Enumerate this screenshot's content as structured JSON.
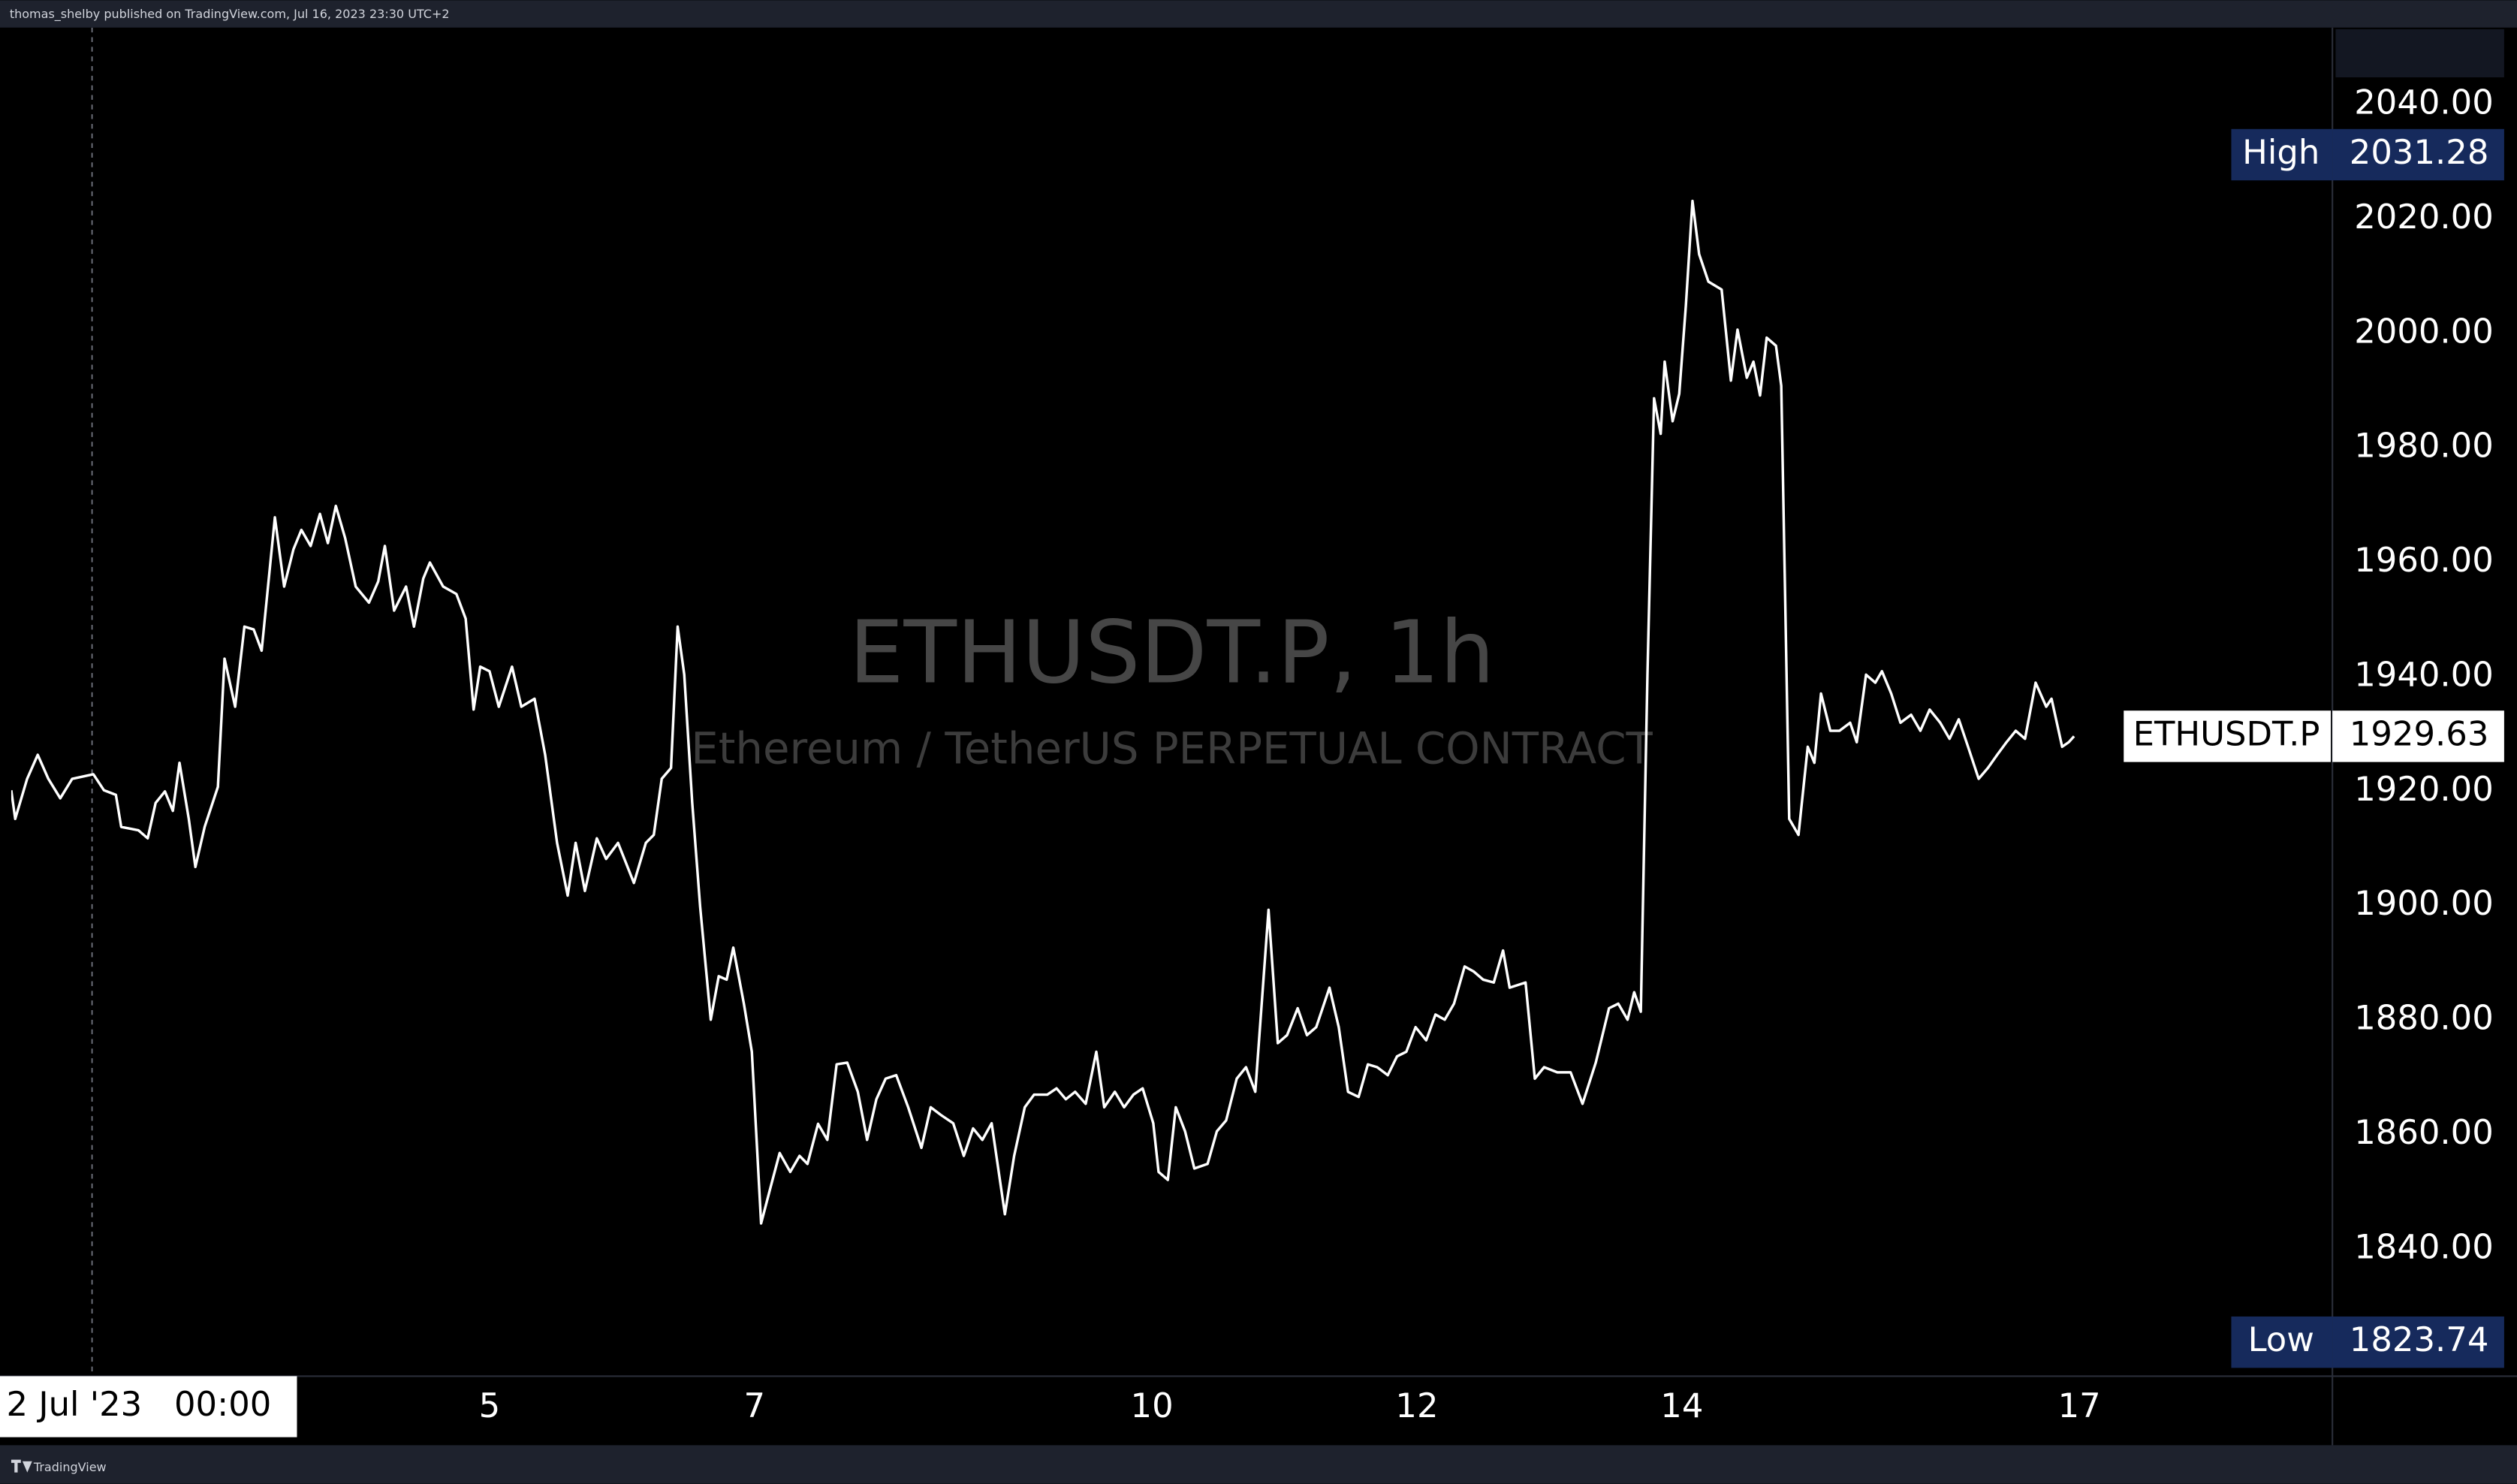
{
  "header": "thomas_shelby published on TradingView.com, Jul 16, 2023 23:30 UTC+2",
  "footer": "TradingView",
  "chart_data": {
    "type": "line",
    "title": "ETHUSDT.P, 1h",
    "subtitle": "Ethereum / TetherUS PERPETUAL CONTRACT",
    "x": [
      1.39,
      1.42,
      1.51,
      1.59,
      1.67,
      1.76,
      1.85,
      2.01,
      2.09,
      2.18,
      2.22,
      2.35,
      2.42,
      2.48,
      2.55,
      2.61,
      2.66,
      2.73,
      2.78,
      2.85,
      2.95,
      3.0,
      3.08,
      3.15,
      3.22,
      3.28,
      3.38,
      3.45,
      3.52,
      3.58,
      3.65,
      3.72,
      3.78,
      3.84,
      3.91,
      3.99,
      4.09,
      4.16,
      4.21,
      4.28,
      4.37,
      4.43,
      4.5,
      4.55,
      4.65,
      4.75,
      4.82,
      4.88,
      4.93,
      5.0,
      5.07,
      5.17,
      5.24,
      5.34,
      5.42,
      5.51,
      5.59,
      5.65,
      5.72,
      5.81,
      5.88,
      5.97,
      6.09,
      6.18,
      6.24,
      6.3,
      6.37,
      6.42,
      6.47,
      6.53,
      6.59,
      6.67,
      6.73,
      6.79,
      6.84,
      6.92,
      6.98,
      7.05,
      7.12,
      7.19,
      7.27,
      7.34,
      7.4,
      7.48,
      7.55,
      7.62,
      7.7,
      7.78,
      7.85,
      7.92,
      7.99,
      8.07,
      8.16,
      8.26,
      8.33,
      8.41,
      8.5,
      8.58,
      8.65,
      8.72,
      8.79,
      8.89,
      8.96,
      9.04,
      9.11,
      9.21,
      9.28,
      9.35,
      9.42,
      9.5,
      9.58,
      9.64,
      9.72,
      9.79,
      9.86,
      9.93,
      10.01,
      10.05,
      10.12,
      10.18,
      10.25,
      10.32,
      10.42,
      10.49,
      10.56,
      10.64,
      10.71,
      10.78,
      10.88,
      10.95,
      11.02,
      11.1,
      11.17,
      11.24,
      11.34,
      11.41,
      11.48,
      11.56,
      11.63,
      11.7,
      11.78,
      11.85,
      11.92,
      11.99,
      12.07,
      12.14,
      12.21,
      12.28,
      12.36,
      12.43,
      12.5,
      12.58,
      12.65,
      12.7,
      12.82,
      12.89,
      12.96,
      13.06,
      13.16,
      13.25,
      13.35,
      13.45,
      13.52,
      13.59,
      13.64,
      13.69,
      13.74,
      13.79,
      13.84,
      13.87,
      13.93,
      13.98,
      14.03,
      14.08,
      14.13,
      14.2,
      14.3,
      14.37,
      14.42,
      14.49,
      14.54,
      14.59,
      14.64,
      14.71,
      14.75,
      14.81,
      14.88,
      14.95,
      15.0,
      15.05,
      15.12,
      15.19,
      15.27,
      15.32,
      15.39,
      15.46,
      15.51,
      15.58,
      15.65,
      15.73,
      15.8,
      15.87,
      15.95,
      16.02,
      16.09,
      16.16,
      16.24,
      16.31,
      16.38,
      16.45,
      16.52,
      16.59,
      16.67,
      16.75,
      16.79,
      16.87,
      16.92,
      16.96
    ],
    "series": [
      {
        "name": "ETHUSDT.P",
        "color": "#ffffff",
        "values": [
          1920.2,
          1915.2,
          1922.2,
          1926.4,
          1922.2,
          1918.8,
          1922.2,
          1923.0,
          1920.2,
          1919.4,
          1913.8,
          1913.2,
          1911.8,
          1918.0,
          1920.0,
          1916.6,
          1925.0,
          1915.2,
          1906.8,
          1913.8,
          1920.8,
          1943.2,
          1934.8,
          1948.8,
          1948.3,
          1944.6,
          1967.9,
          1955.8,
          1962.3,
          1965.7,
          1962.9,
          1968.5,
          1963.4,
          1969.9,
          1964.3,
          1955.8,
          1953.0,
          1956.7,
          1962.9,
          1951.6,
          1955.8,
          1948.8,
          1957.2,
          1960.0,
          1955.8,
          1954.5,
          1950.2,
          1934.3,
          1941.8,
          1941.0,
          1934.8,
          1941.8,
          1934.8,
          1936.2,
          1926.4,
          1911.0,
          1901.8,
          1911.0,
          1902.6,
          1911.8,
          1908.2,
          1911.0,
          1904.0,
          1911.0,
          1912.4,
          1922.2,
          1924.1,
          1948.8,
          1940.4,
          1918.0,
          1899.8,
          1880.1,
          1887.7,
          1887.1,
          1892.7,
          1882.9,
          1874.5,
          1844.5,
          1850.7,
          1856.8,
          1853.5,
          1856.3,
          1854.9,
          1861.9,
          1859.1,
          1872.3,
          1872.6,
          1867.5,
          1859.1,
          1866.2,
          1869.8,
          1870.4,
          1864.8,
          1857.7,
          1864.8,
          1863.4,
          1862.0,
          1856.3,
          1861.1,
          1859.1,
          1862.0,
          1846.1,
          1856.3,
          1864.8,
          1867.0,
          1867.0,
          1868.1,
          1866.2,
          1867.5,
          1865.4,
          1874.5,
          1864.8,
          1867.5,
          1864.8,
          1867.0,
          1868.1,
          1862.0,
          1853.5,
          1852.1,
          1864.8,
          1860.6,
          1854.1,
          1854.9,
          1860.6,
          1862.5,
          1869.8,
          1871.8,
          1867.5,
          1899.3,
          1876.0,
          1877.4,
          1882.1,
          1877.4,
          1878.8,
          1885.7,
          1878.8,
          1867.5,
          1866.6,
          1872.3,
          1871.8,
          1870.4,
          1873.7,
          1874.5,
          1878.8,
          1876.5,
          1881.0,
          1880.1,
          1882.9,
          1889.4,
          1888.5,
          1887.1,
          1886.6,
          1892.2,
          1885.7,
          1886.6,
          1869.8,
          1871.8,
          1870.9,
          1870.9,
          1865.4,
          1872.6,
          1882.1,
          1882.9,
          1880.1,
          1884.9,
          1881.5,
          1940.4,
          1988.7,
          1982.5,
          1995.1,
          1984.7,
          1989.5,
          2004.9,
          2023.2,
          2013.9,
          2009.1,
          2007.7,
          1991.8,
          2000.7,
          1992.3,
          1995.1,
          1989.2,
          1999.3,
          1997.9,
          1990.9,
          1915.2,
          1912.4,
          1927.8,
          1925.0,
          1937.1,
          1930.6,
          1930.6,
          1932.0,
          1928.6,
          1940.4,
          1939.0,
          1941.0,
          1937.1,
          1932.0,
          1933.4,
          1930.6,
          1934.3,
          1932.0,
          1929.2,
          1932.6,
          1927.8,
          1922.2,
          1924.1,
          1926.4,
          1928.6,
          1930.6,
          1929.2,
          1939.0,
          1934.8,
          1936.2,
          1927.8,
          1928.6,
          1929.63
        ]
      }
    ],
    "xlim": [
      1.39,
      18.91
    ],
    "xticks": [
      5,
      7,
      10,
      12,
      14,
      17
    ],
    "ylim": [
      1817.8,
      2053.5
    ],
    "yticks": [
      {
        "value": 1840,
        "label": "1840.00"
      },
      {
        "value": 1860,
        "label": "1860.00"
      },
      {
        "value": 1880,
        "label": "1880.00"
      },
      {
        "value": 1900,
        "label": "1900.00"
      },
      {
        "value": 1920,
        "label": "1920.00"
      },
      {
        "value": 1940,
        "label": "1940.00"
      },
      {
        "value": 1960,
        "label": "1960.00"
      },
      {
        "value": 1980,
        "label": "1980.00"
      },
      {
        "value": 2000,
        "label": "2000.00"
      },
      {
        "value": 2020,
        "label": "2020.00"
      },
      {
        "value": 2040,
        "label": "2040.00"
      }
    ],
    "price_labels": [
      {
        "name": "High",
        "value": 2031.28
      },
      {
        "name": "Low",
        "value": 1823.74
      }
    ],
    "crosshair": {
      "x": 2,
      "label": "2 Jul '23   00:00"
    },
    "grid": false
  }
}
